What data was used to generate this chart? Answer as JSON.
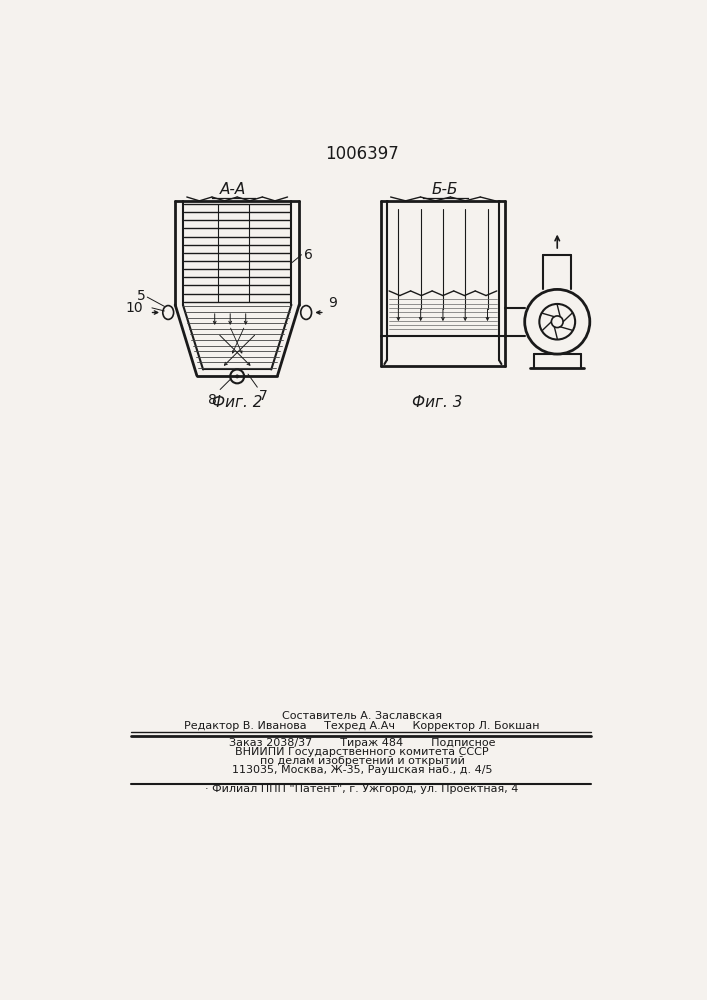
{
  "title": "1006397",
  "background_color": "#f5f2ee",
  "fig2_label": "А-А",
  "fig2_caption": "Фиг. 2",
  "fig3_label": "Б-Б",
  "fig3_caption": "Фиг. 3",
  "line_color": "#1a1a1a",
  "footer": {
    "line1": "Составитель А. Заславская",
    "line2": "Редактор В. Иванова     Техред А.Ач     Корректор Л. Бокшан",
    "line3": "Заказ 2038/37        Тираж 484        Подписное",
    "line4": "ВНИИПИ Государственного комитета СССР",
    "line5": "по делам изобретений и открытий",
    "line6": "113035, Москва, Ж-35, Раушская наб., д. 4/5",
    "line7": "· Филиал ППП \"Патент\", г. Ужгород, ул. Проектная, 4"
  }
}
